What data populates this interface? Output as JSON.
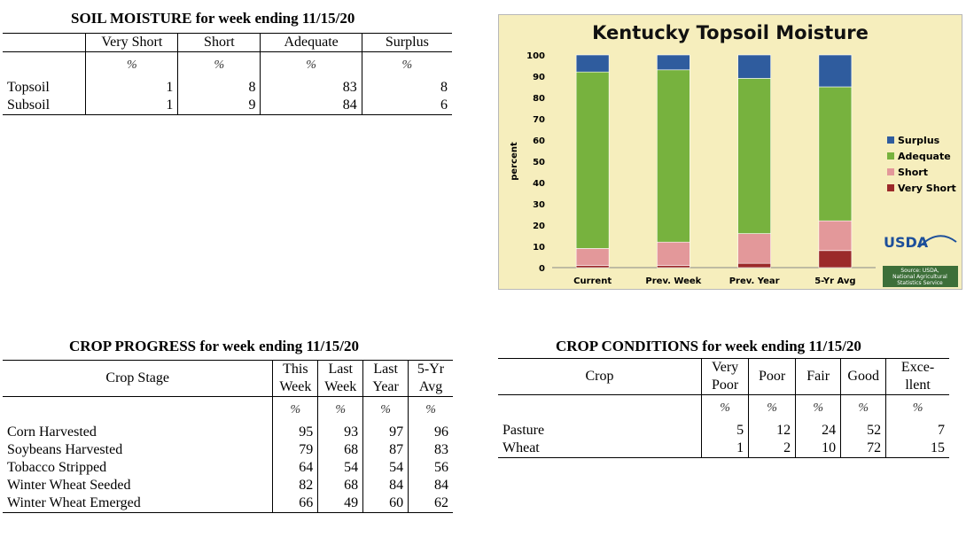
{
  "soil_moisture": {
    "title": "SOIL MOISTURE for week ending 11/15/20",
    "columns": [
      "Very Short",
      "Short",
      "Adequate",
      "Surplus"
    ],
    "units": [
      "%",
      "%",
      "%",
      "%"
    ],
    "rows": [
      {
        "label": "Topsoil",
        "values": [
          "1",
          "8",
          "83",
          "8"
        ]
      },
      {
        "label": "Subsoil",
        "values": [
          "1",
          "9",
          "84",
          "6"
        ]
      }
    ]
  },
  "crop_progress": {
    "title": "CROP PROGRESS for week ending 11/15/20",
    "stage_header": "Crop Stage",
    "columns": [
      [
        "This",
        "Week"
      ],
      [
        "Last",
        "Week"
      ],
      [
        "Last",
        "Year"
      ],
      [
        "5-Yr",
        "Avg"
      ]
    ],
    "units": [
      "%",
      "%",
      "%",
      "%"
    ],
    "rows": [
      {
        "label": "Corn Harvested",
        "values": [
          "95",
          "93",
          "97",
          "96"
        ]
      },
      {
        "label": "Soybeans Harvested",
        "values": [
          "79",
          "68",
          "87",
          "83"
        ]
      },
      {
        "label": "Tobacco Stripped",
        "values": [
          "64",
          "54",
          "54",
          "56"
        ]
      },
      {
        "label": "Winter Wheat Seeded",
        "values": [
          "82",
          "68",
          "84",
          "84"
        ]
      },
      {
        "label": "Winter Wheat Emerged",
        "values": [
          "66",
          "49",
          "60",
          "62"
        ]
      }
    ]
  },
  "crop_conditions": {
    "title": "CROP CONDITIONS for week ending 11/15/20",
    "crop_header": "Crop",
    "columns": [
      [
        "Very",
        "Poor"
      ],
      [
        "Poor"
      ],
      [
        "Fair"
      ],
      [
        "Good"
      ],
      [
        "Exce-",
        "llent"
      ]
    ],
    "units": [
      "%",
      "%",
      "%",
      "%",
      "%"
    ],
    "rows": [
      {
        "label": "Pasture",
        "values": [
          "5",
          "12",
          "24",
          "52",
          "7"
        ]
      },
      {
        "label": "Wheat",
        "values": [
          "1",
          "2",
          "10",
          "72",
          "15"
        ]
      }
    ]
  },
  "chart_data": {
    "type": "bar",
    "stacked": true,
    "title": "Kentucky Topsoil Moisture",
    "ylabel": "percent",
    "xlabel": "",
    "ylim": [
      0,
      100
    ],
    "yticks": [
      0,
      10,
      20,
      30,
      40,
      50,
      60,
      70,
      80,
      90,
      100
    ],
    "grid": false,
    "legend_position": "right",
    "categories": [
      "Current",
      "Prev. Week",
      "Prev. Year",
      "5-Yr Avg"
    ],
    "series": [
      {
        "name": "Very Short",
        "color": "#9b2a2a",
        "values": [
          1,
          1,
          2,
          8
        ]
      },
      {
        "name": "Short",
        "color": "#e3989a",
        "values": [
          8,
          11,
          14,
          14
        ]
      },
      {
        "name": "Adequate",
        "color": "#77b23e",
        "values": [
          83,
          81,
          73,
          63
        ]
      },
      {
        "name": "Surplus",
        "color": "#2f5c9e",
        "values": [
          8,
          7,
          11,
          15
        ]
      }
    ],
    "legend_order": [
      "Surplus",
      "Adequate",
      "Short",
      "Very Short"
    ],
    "logo_text": "USDA",
    "source_text": [
      "Source: USDA,",
      "National Agricultural",
      "Statistics Service"
    ]
  }
}
